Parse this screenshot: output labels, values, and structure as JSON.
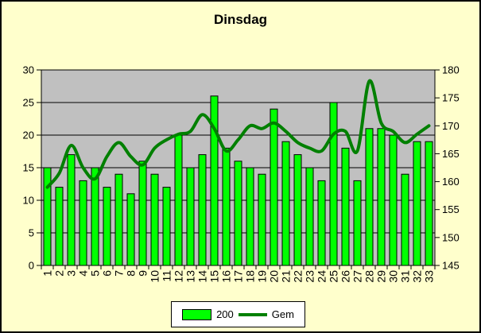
{
  "title": "Dinsdag",
  "legend": {
    "bars_label": "200",
    "line_label": "Gem"
  },
  "colors": {
    "background": "#FFFFCC",
    "plot_background": "#C0C0C0",
    "gridline": "#000000",
    "bar_fill": "#00FF00",
    "bar_border": "#000000",
    "line_color": "#008000",
    "text": "#000000",
    "legend_background": "#FFFFFF"
  },
  "chart_data": {
    "type": "bar",
    "title": "Dinsdag",
    "categories": [
      "1",
      "2",
      "3",
      "4",
      "5",
      "6",
      "7",
      "8",
      "9",
      "10",
      "11",
      "12",
      "13",
      "14",
      "15",
      "16",
      "17",
      "18",
      "19",
      "20",
      "21",
      "22",
      "23",
      "24",
      "25",
      "26",
      "27",
      "28",
      "29",
      "30",
      "31",
      "32",
      "33"
    ],
    "series": [
      {
        "name": "200",
        "type": "bar",
        "axis": "left",
        "values": [
          15,
          12,
          17,
          13,
          15,
          12,
          14,
          11,
          16,
          14,
          12,
          20,
          15,
          17,
          26,
          18,
          16,
          15,
          14,
          24,
          19,
          17,
          15,
          13,
          25,
          18,
          13,
          21,
          21,
          20,
          14,
          19,
          19
        ]
      },
      {
        "name": "Gem",
        "type": "line",
        "axis": "right",
        "values": [
          159,
          161.5,
          166.5,
          162.5,
          160.5,
          164.5,
          167,
          164.5,
          163,
          166,
          167.5,
          168.5,
          169,
          172,
          169.5,
          165.5,
          167.5,
          170,
          169.5,
          170.5,
          169,
          167,
          166,
          165.5,
          168.5,
          169,
          165.5,
          178,
          170.5,
          169,
          167,
          168.5,
          170
        ]
      }
    ],
    "left_axis": {
      "min": 0,
      "max": 30,
      "step": 5,
      "ticks": [
        "30",
        "25",
        "20",
        "15",
        "10",
        "5",
        "0"
      ]
    },
    "right_axis": {
      "min": 145,
      "max": 180,
      "step": 5,
      "ticks": [
        "180",
        "175",
        "170",
        "165",
        "160",
        "155",
        "150",
        "145"
      ]
    },
    "grid": true,
    "legend_position": "bottom"
  }
}
